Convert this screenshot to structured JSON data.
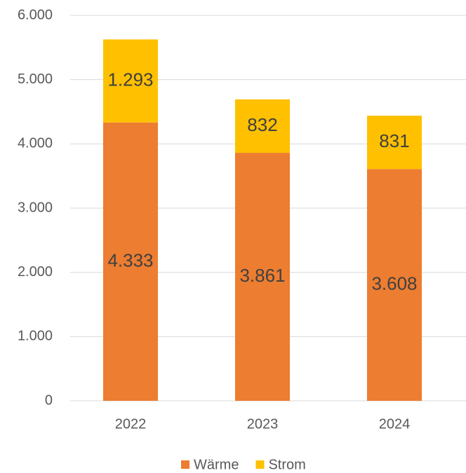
{
  "chart_data": {
    "type": "stacked_bar",
    "categories": [
      "2022",
      "2023",
      "2024"
    ],
    "series": [
      {
        "name": "Wärme",
        "color": "#ed7d31",
        "values": [
          4333,
          3861,
          3608
        ],
        "value_labels": [
          "4.333",
          "3.861",
          "3.608"
        ]
      },
      {
        "name": "Strom",
        "color": "#ffc000",
        "values": [
          1293,
          832,
          831
        ],
        "value_labels": [
          "1.293",
          "832",
          "831"
        ]
      }
    ],
    "ylim": [
      0,
      6000
    ],
    "yticks": [
      0,
      {
        "value": 1000,
        "label": "1.000"
      },
      {
        "value": 2000,
        "label": "2.000"
      },
      {
        "value": 3000,
        "label": "3.000"
      },
      {
        "value": 4000,
        "label": "4.000"
      },
      {
        "value": 5000,
        "label": "5.000"
      },
      {
        "value": 6000,
        "label": "6.000"
      }
    ],
    "grid": true,
    "legend": "bottom"
  }
}
